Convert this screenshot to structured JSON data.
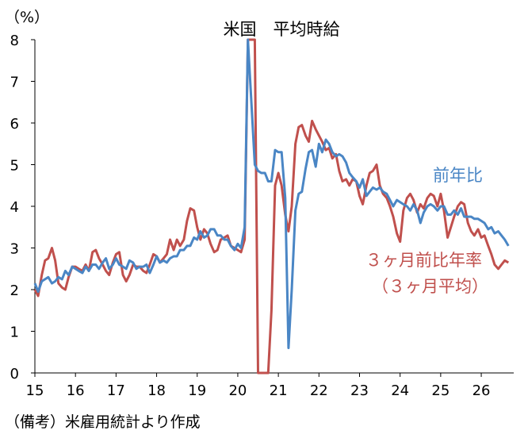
{
  "chart_data": {
    "type": "line",
    "title": "米国　平均時給",
    "ylabel": "（%）",
    "ylim": [
      0,
      8
    ],
    "y_ticks": [
      "0",
      "1",
      "2",
      "3",
      "4",
      "5",
      "6",
      "7",
      "8"
    ],
    "x_ticks": [
      "15",
      "16",
      "17",
      "18",
      "19",
      "20",
      "21",
      "22",
      "23",
      "24",
      "25",
      "26"
    ],
    "xlim": [
      2015.0,
      2026.8
    ],
    "note": "（備考）米雇用統計より作成",
    "series": [
      {
        "name": "前年比",
        "color": "#4a86c5",
        "points": [
          [
            2015.0,
            2.15
          ],
          [
            2015.08,
            1.95
          ],
          [
            2015.17,
            2.2
          ],
          [
            2015.25,
            2.25
          ],
          [
            2015.33,
            2.3
          ],
          [
            2015.42,
            2.15
          ],
          [
            2015.5,
            2.2
          ],
          [
            2015.58,
            2.3
          ],
          [
            2015.67,
            2.25
          ],
          [
            2015.75,
            2.45
          ],
          [
            2015.83,
            2.35
          ],
          [
            2015.92,
            2.55
          ],
          [
            2016.0,
            2.5
          ],
          [
            2016.08,
            2.45
          ],
          [
            2016.17,
            2.4
          ],
          [
            2016.25,
            2.55
          ],
          [
            2016.33,
            2.45
          ],
          [
            2016.42,
            2.6
          ],
          [
            2016.5,
            2.6
          ],
          [
            2016.58,
            2.5
          ],
          [
            2016.67,
            2.65
          ],
          [
            2016.75,
            2.75
          ],
          [
            2016.83,
            2.5
          ],
          [
            2016.92,
            2.6
          ],
          [
            2017.0,
            2.75
          ],
          [
            2017.08,
            2.6
          ],
          [
            2017.17,
            2.55
          ],
          [
            2017.25,
            2.5
          ],
          [
            2017.33,
            2.7
          ],
          [
            2017.42,
            2.65
          ],
          [
            2017.5,
            2.5
          ],
          [
            2017.58,
            2.55
          ],
          [
            2017.67,
            2.55
          ],
          [
            2017.75,
            2.6
          ],
          [
            2017.83,
            2.4
          ],
          [
            2017.92,
            2.6
          ],
          [
            2018.0,
            2.8
          ],
          [
            2018.08,
            2.65
          ],
          [
            2018.17,
            2.7
          ],
          [
            2018.25,
            2.65
          ],
          [
            2018.33,
            2.75
          ],
          [
            2018.42,
            2.8
          ],
          [
            2018.5,
            2.8
          ],
          [
            2018.58,
            2.95
          ],
          [
            2018.67,
            2.95
          ],
          [
            2018.75,
            3.05
          ],
          [
            2018.83,
            3.05
          ],
          [
            2018.92,
            3.25
          ],
          [
            2019.0,
            3.2
          ],
          [
            2019.08,
            3.4
          ],
          [
            2019.17,
            3.25
          ],
          [
            2019.25,
            3.3
          ],
          [
            2019.33,
            3.45
          ],
          [
            2019.42,
            3.45
          ],
          [
            2019.5,
            3.3
          ],
          [
            2019.58,
            3.3
          ],
          [
            2019.67,
            3.2
          ],
          [
            2019.75,
            3.2
          ],
          [
            2019.83,
            3.05
          ],
          [
            2019.92,
            2.95
          ],
          [
            2020.0,
            3.1
          ],
          [
            2020.08,
            3.0
          ],
          [
            2020.17,
            3.5
          ],
          [
            2020.25,
            8.0
          ],
          [
            2020.33,
            6.6
          ],
          [
            2020.42,
            5.0
          ],
          [
            2020.5,
            4.85
          ],
          [
            2020.58,
            4.8
          ],
          [
            2020.67,
            4.8
          ],
          [
            2020.75,
            4.6
          ],
          [
            2020.83,
            4.6
          ],
          [
            2020.92,
            5.35
          ],
          [
            2021.0,
            5.3
          ],
          [
            2021.08,
            5.3
          ],
          [
            2021.17,
            4.2
          ],
          [
            2021.25,
            0.6
          ],
          [
            2021.33,
            2.0
          ],
          [
            2021.42,
            3.9
          ],
          [
            2021.5,
            4.3
          ],
          [
            2021.58,
            4.35
          ],
          [
            2021.67,
            4.9
          ],
          [
            2021.75,
            5.3
          ],
          [
            2021.83,
            5.35
          ],
          [
            2021.92,
            4.95
          ],
          [
            2022.0,
            5.5
          ],
          [
            2022.08,
            5.3
          ],
          [
            2022.17,
            5.6
          ],
          [
            2022.25,
            5.5
          ],
          [
            2022.33,
            5.3
          ],
          [
            2022.42,
            5.2
          ],
          [
            2022.5,
            5.25
          ],
          [
            2022.58,
            5.2
          ],
          [
            2022.67,
            5.05
          ],
          [
            2022.75,
            4.8
          ],
          [
            2022.83,
            4.7
          ],
          [
            2022.92,
            4.6
          ],
          [
            2023.0,
            4.45
          ],
          [
            2023.08,
            4.65
          ],
          [
            2023.17,
            4.25
          ],
          [
            2023.25,
            4.35
          ],
          [
            2023.33,
            4.45
          ],
          [
            2023.42,
            4.4
          ],
          [
            2023.5,
            4.45
          ],
          [
            2023.58,
            4.35
          ],
          [
            2023.67,
            4.3
          ],
          [
            2023.75,
            4.15
          ],
          [
            2023.83,
            4.0
          ],
          [
            2023.92,
            4.15
          ],
          [
            2024.0,
            4.1
          ],
          [
            2024.08,
            4.05
          ],
          [
            2024.17,
            4.0
          ],
          [
            2024.25,
            3.9
          ],
          [
            2024.33,
            4.05
          ],
          [
            2024.42,
            3.9
          ],
          [
            2024.5,
            3.6
          ],
          [
            2024.58,
            3.85
          ],
          [
            2024.67,
            4.0
          ],
          [
            2024.75,
            4.05
          ],
          [
            2024.83,
            4.0
          ],
          [
            2024.92,
            3.9
          ],
          [
            2025.0,
            4.0
          ],
          [
            2025.08,
            4.0
          ],
          [
            2025.17,
            3.8
          ],
          [
            2025.25,
            3.8
          ],
          [
            2025.33,
            3.9
          ],
          [
            2025.42,
            3.8
          ],
          [
            2025.5,
            3.95
          ],
          [
            2025.58,
            3.75
          ],
          [
            2025.67,
            3.75
          ],
          [
            2025.75,
            3.75
          ],
          [
            2025.83,
            3.7
          ],
          [
            2025.92,
            3.7
          ],
          [
            2026.0,
            3.65
          ],
          [
            2026.08,
            3.6
          ],
          [
            2026.17,
            3.45
          ],
          [
            2026.25,
            3.5
          ],
          [
            2026.33,
            3.35
          ],
          [
            2026.42,
            3.4
          ],
          [
            2026.5,
            3.3
          ],
          [
            2026.58,
            3.2
          ],
          [
            2026.67,
            3.05
          ]
        ]
      },
      {
        "name": "３ヶ月前比年率（３ヶ月平均）",
        "color": "#c0504d",
        "points": [
          [
            2015.0,
            2.0
          ],
          [
            2015.08,
            1.85
          ],
          [
            2015.17,
            2.35
          ],
          [
            2015.25,
            2.7
          ],
          [
            2015.33,
            2.75
          ],
          [
            2015.42,
            3.0
          ],
          [
            2015.5,
            2.7
          ],
          [
            2015.58,
            2.15
          ],
          [
            2015.67,
            2.05
          ],
          [
            2015.75,
            2.0
          ],
          [
            2015.83,
            2.3
          ],
          [
            2015.92,
            2.55
          ],
          [
            2016.0,
            2.55
          ],
          [
            2016.08,
            2.5
          ],
          [
            2016.17,
            2.45
          ],
          [
            2016.25,
            2.6
          ],
          [
            2016.33,
            2.45
          ],
          [
            2016.42,
            2.9
          ],
          [
            2016.5,
            2.95
          ],
          [
            2016.58,
            2.75
          ],
          [
            2016.67,
            2.6
          ],
          [
            2016.75,
            2.45
          ],
          [
            2016.83,
            2.35
          ],
          [
            2016.92,
            2.65
          ],
          [
            2017.0,
            2.85
          ],
          [
            2017.08,
            2.9
          ],
          [
            2017.17,
            2.35
          ],
          [
            2017.25,
            2.2
          ],
          [
            2017.33,
            2.35
          ],
          [
            2017.42,
            2.6
          ],
          [
            2017.5,
            2.55
          ],
          [
            2017.58,
            2.55
          ],
          [
            2017.67,
            2.45
          ],
          [
            2017.75,
            2.4
          ],
          [
            2017.83,
            2.6
          ],
          [
            2017.92,
            2.85
          ],
          [
            2018.0,
            2.8
          ],
          [
            2018.08,
            2.65
          ],
          [
            2018.17,
            2.75
          ],
          [
            2018.25,
            2.85
          ],
          [
            2018.33,
            3.2
          ],
          [
            2018.42,
            2.95
          ],
          [
            2018.5,
            3.2
          ],
          [
            2018.58,
            3.05
          ],
          [
            2018.67,
            3.2
          ],
          [
            2018.75,
            3.65
          ],
          [
            2018.83,
            3.95
          ],
          [
            2018.92,
            3.9
          ],
          [
            2019.0,
            3.5
          ],
          [
            2019.08,
            3.2
          ],
          [
            2019.17,
            3.45
          ],
          [
            2019.25,
            3.35
          ],
          [
            2019.33,
            3.1
          ],
          [
            2019.42,
            2.9
          ],
          [
            2019.5,
            2.95
          ],
          [
            2019.58,
            3.2
          ],
          [
            2019.67,
            3.25
          ],
          [
            2019.75,
            3.3
          ],
          [
            2019.83,
            3.05
          ],
          [
            2019.92,
            3.0
          ],
          [
            2020.0,
            2.95
          ],
          [
            2020.08,
            2.9
          ],
          [
            2020.17,
            3.2
          ],
          [
            2020.25,
            8.0
          ],
          [
            2020.42,
            8.0
          ],
          [
            2020.5,
            0.0
          ],
          [
            2020.75,
            0.0
          ],
          [
            2020.83,
            1.5
          ],
          [
            2020.92,
            4.5
          ],
          [
            2021.0,
            4.8
          ],
          [
            2021.08,
            4.5
          ],
          [
            2021.17,
            3.8
          ],
          [
            2021.25,
            3.4
          ],
          [
            2021.33,
            4.0
          ],
          [
            2021.42,
            5.5
          ],
          [
            2021.5,
            5.9
          ],
          [
            2021.58,
            5.95
          ],
          [
            2021.67,
            5.7
          ],
          [
            2021.75,
            5.55
          ],
          [
            2021.83,
            6.05
          ],
          [
            2021.92,
            5.85
          ],
          [
            2022.0,
            5.7
          ],
          [
            2022.08,
            5.55
          ],
          [
            2022.17,
            5.35
          ],
          [
            2022.25,
            5.4
          ],
          [
            2022.33,
            5.15
          ],
          [
            2022.42,
            5.25
          ],
          [
            2022.5,
            4.85
          ],
          [
            2022.58,
            4.6
          ],
          [
            2022.67,
            4.65
          ],
          [
            2022.75,
            4.5
          ],
          [
            2022.83,
            4.65
          ],
          [
            2022.92,
            4.6
          ],
          [
            2023.0,
            4.25
          ],
          [
            2023.08,
            4.05
          ],
          [
            2023.17,
            4.5
          ],
          [
            2023.25,
            4.8
          ],
          [
            2023.33,
            4.85
          ],
          [
            2023.42,
            5.0
          ],
          [
            2023.5,
            4.5
          ],
          [
            2023.58,
            4.3
          ],
          [
            2023.67,
            4.2
          ],
          [
            2023.75,
            4.0
          ],
          [
            2023.83,
            3.75
          ],
          [
            2023.92,
            3.35
          ],
          [
            2024.0,
            3.15
          ],
          [
            2024.08,
            3.9
          ],
          [
            2024.17,
            4.2
          ],
          [
            2024.25,
            4.3
          ],
          [
            2024.33,
            4.15
          ],
          [
            2024.42,
            3.85
          ],
          [
            2024.5,
            4.05
          ],
          [
            2024.58,
            3.95
          ],
          [
            2024.67,
            4.2
          ],
          [
            2024.75,
            4.3
          ],
          [
            2024.83,
            4.25
          ],
          [
            2024.92,
            4.0
          ],
          [
            2025.0,
            4.3
          ],
          [
            2025.08,
            3.9
          ],
          [
            2025.17,
            3.25
          ],
          [
            2025.25,
            3.5
          ],
          [
            2025.33,
            3.75
          ],
          [
            2025.42,
            4.0
          ],
          [
            2025.5,
            4.1
          ],
          [
            2025.58,
            4.05
          ],
          [
            2025.67,
            3.6
          ],
          [
            2025.75,
            3.4
          ],
          [
            2025.83,
            3.3
          ],
          [
            2025.92,
            3.45
          ],
          [
            2026.0,
            3.25
          ],
          [
            2026.08,
            3.3
          ],
          [
            2026.17,
            3.05
          ],
          [
            2026.25,
            2.85
          ],
          [
            2026.33,
            2.6
          ],
          [
            2026.42,
            2.5
          ],
          [
            2026.5,
            2.6
          ],
          [
            2026.58,
            2.7
          ],
          [
            2026.67,
            2.65
          ]
        ]
      }
    ]
  }
}
